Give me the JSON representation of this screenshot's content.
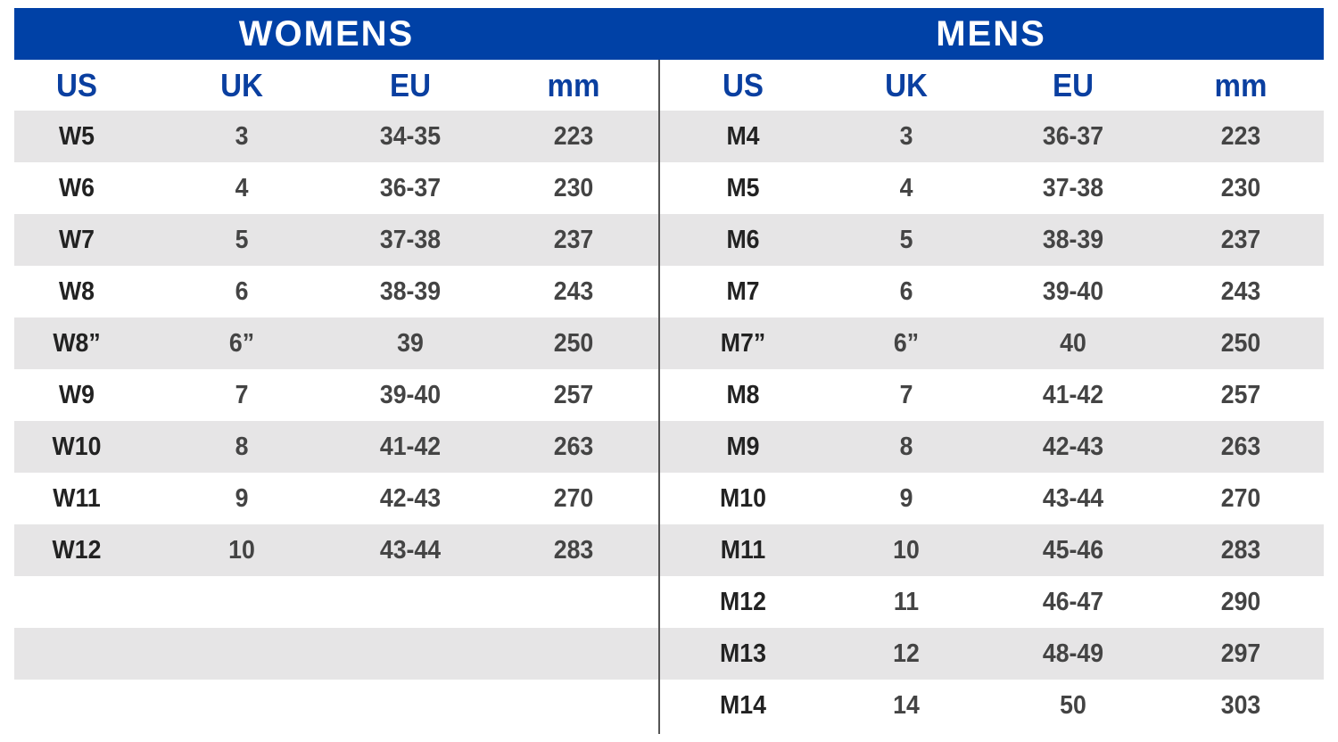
{
  "colors": {
    "banner": "#0041a6",
    "header_text": "#0a3fa0",
    "stripe": "#e6e5e6"
  },
  "womens": {
    "title": "WOMENS",
    "columns": [
      "US",
      "UK",
      "EU",
      "mm"
    ],
    "rows": [
      [
        "W5",
        "3",
        "34-35",
        "223"
      ],
      [
        "W6",
        "4",
        "36-37",
        "230"
      ],
      [
        "W7",
        "5",
        "37-38",
        "237"
      ],
      [
        "W8",
        "6",
        "38-39",
        "243"
      ],
      [
        "W8”",
        "6”",
        "39",
        "250"
      ],
      [
        "W9",
        "7",
        "39-40",
        "257"
      ],
      [
        "W10",
        "8",
        "41-42",
        "263"
      ],
      [
        "W11",
        "9",
        "42-43",
        "270"
      ],
      [
        "W12",
        "10",
        "43-44",
        "283"
      ]
    ]
  },
  "mens": {
    "title": "MENS",
    "columns": [
      "US",
      "UK",
      "EU",
      "mm"
    ],
    "rows": [
      [
        "M4",
        "3",
        "36-37",
        "223"
      ],
      [
        "M5",
        "4",
        "37-38",
        "230"
      ],
      [
        "M6",
        "5",
        "38-39",
        "237"
      ],
      [
        "M7",
        "6",
        "39-40",
        "243"
      ],
      [
        "M7”",
        "6”",
        "40",
        "250"
      ],
      [
        "M8",
        "7",
        "41-42",
        "257"
      ],
      [
        "M9",
        "8",
        "42-43",
        "263"
      ],
      [
        "M10",
        "9",
        "43-44",
        "270"
      ],
      [
        "M11",
        "10",
        "45-46",
        "283"
      ],
      [
        "M12",
        "11",
        "46-47",
        "290"
      ],
      [
        "M13",
        "12",
        "48-49",
        "297"
      ],
      [
        "M14",
        "14",
        "50",
        "303"
      ]
    ]
  }
}
